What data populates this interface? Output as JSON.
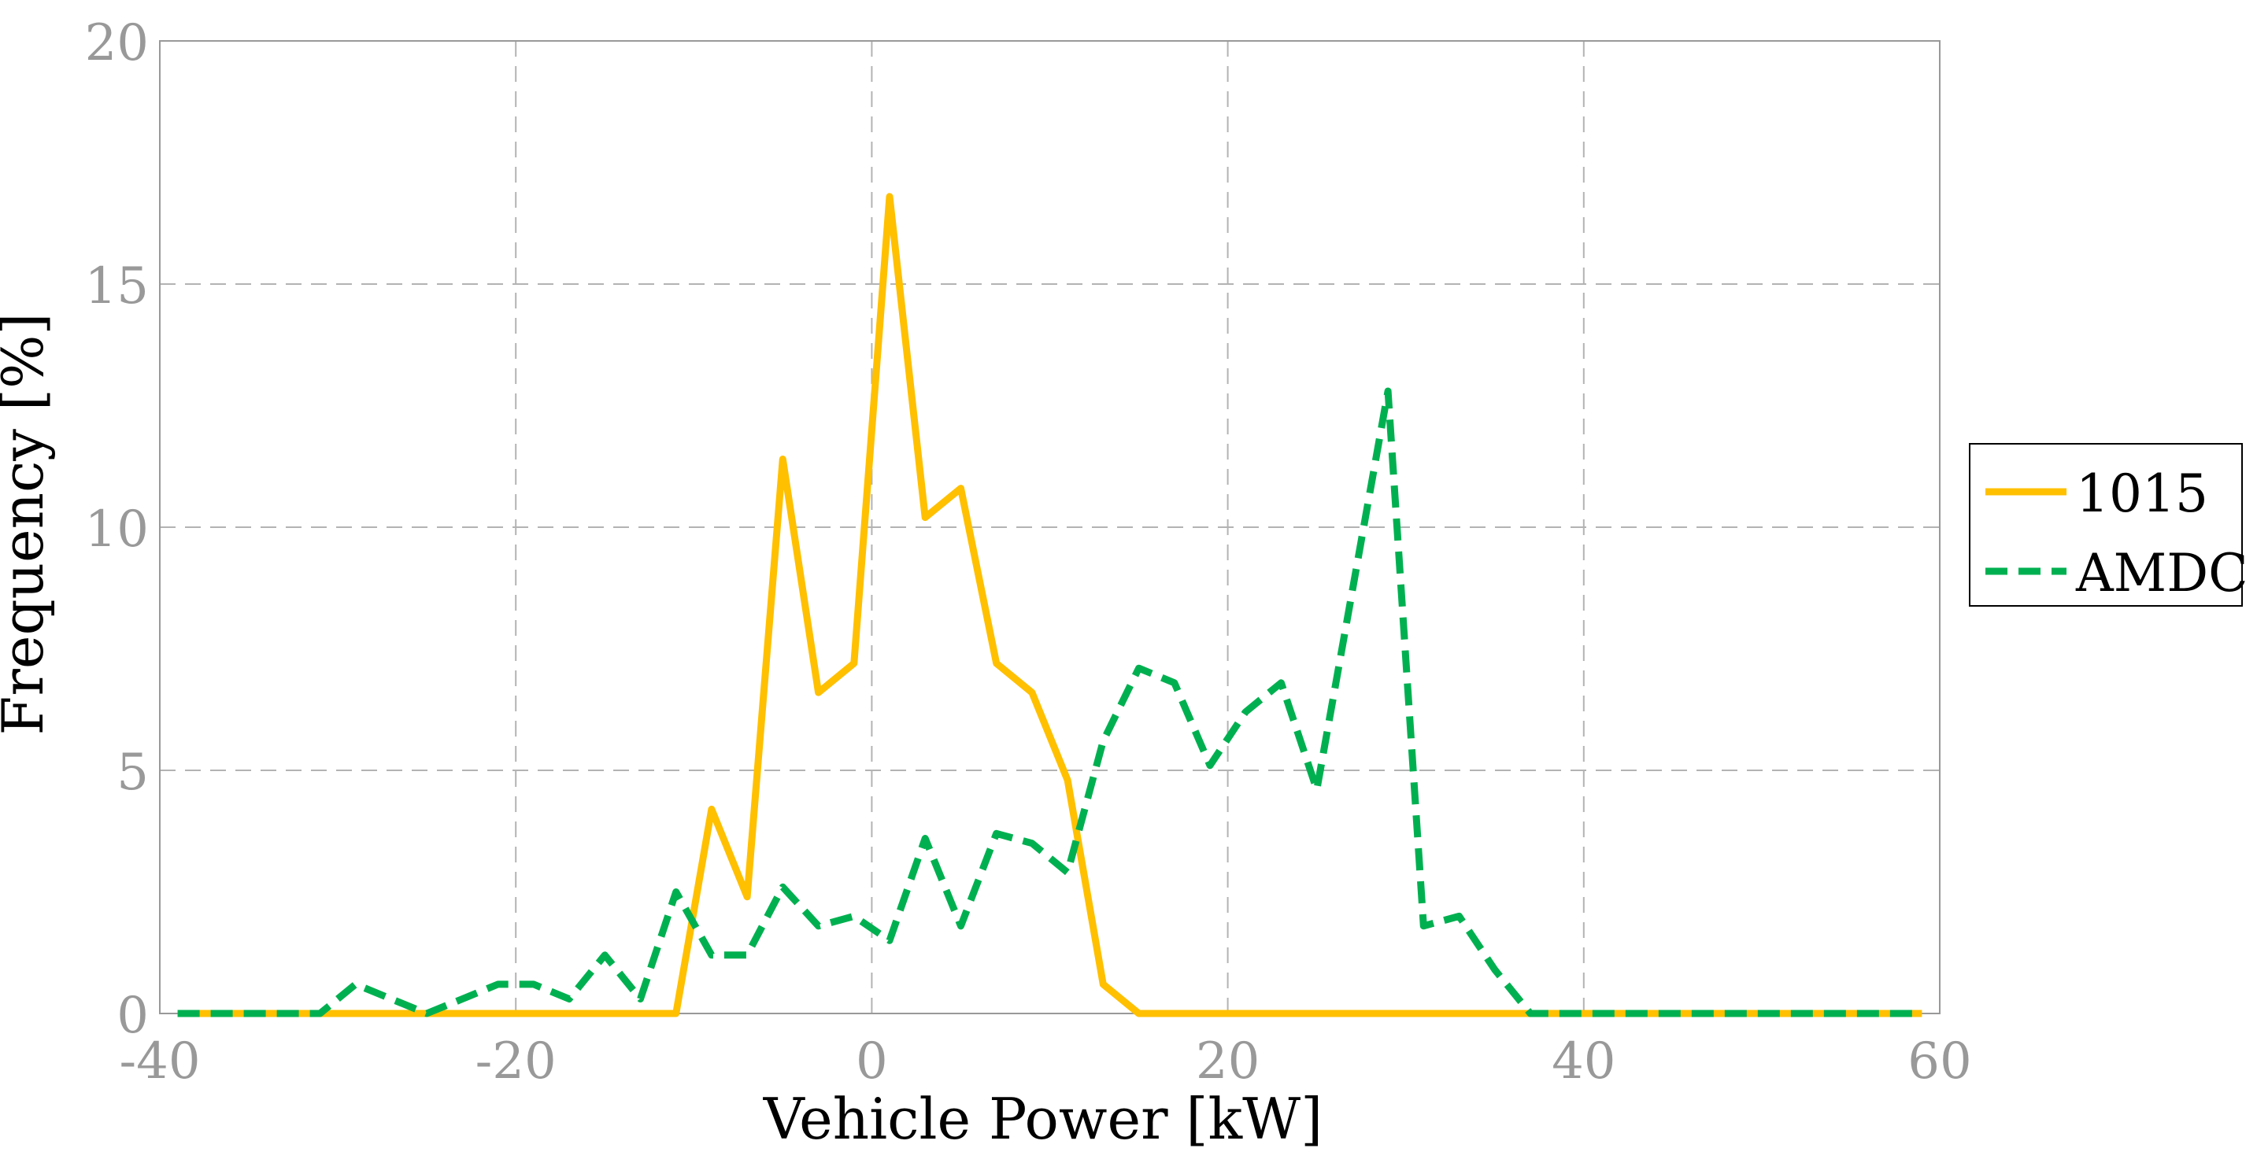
{
  "chart_data": {
    "type": "line",
    "title": "",
    "xlabel": "Vehicle Power [kW]",
    "ylabel": "Frequency [%]",
    "xlim": [
      -40,
      60
    ],
    "ylim": [
      0,
      20
    ],
    "xticks": [
      -40,
      -20,
      0,
      20,
      40,
      60
    ],
    "yticks": [
      0,
      5,
      10,
      15,
      20
    ],
    "grid": true,
    "legend_position": "right",
    "series": [
      {
        "name": "1015",
        "color": "#FFC000",
        "line_style": "solid",
        "x": [
          -39,
          -37,
          -35,
          -33,
          -31,
          -29,
          -27,
          -25,
          -23,
          -21,
          -19,
          -17,
          -15,
          -13,
          -11,
          -9,
          -7,
          -5,
          -3,
          -1,
          1,
          3,
          5,
          7,
          9,
          11,
          13,
          15,
          17,
          19,
          21,
          23,
          25,
          27,
          29,
          31,
          33,
          35,
          37,
          39,
          41,
          43,
          45,
          47,
          49,
          51,
          53,
          55,
          57,
          59
        ],
        "values": [
          0,
          0,
          0,
          0,
          0,
          0,
          0,
          0,
          0,
          0,
          0,
          0,
          0,
          0,
          0,
          4.2,
          2.4,
          11.4,
          6.6,
          7.2,
          16.8,
          10.2,
          10.8,
          7.2,
          6.6,
          4.8,
          0.6,
          0,
          0,
          0,
          0,
          0,
          0,
          0,
          0,
          0,
          0,
          0,
          0,
          0,
          0,
          0,
          0,
          0,
          0,
          0,
          0,
          0,
          0,
          0
        ]
      },
      {
        "name": "AMDC",
        "color": "#00B050",
        "line_style": "dashed",
        "x": [
          -39,
          -37,
          -35,
          -33,
          -31,
          -29,
          -27,
          -25,
          -23,
          -21,
          -19,
          -17,
          -15,
          -13,
          -11,
          -9,
          -7,
          -5,
          -3,
          -1,
          1,
          3,
          5,
          7,
          9,
          11,
          13,
          15,
          17,
          19,
          21,
          23,
          25,
          27,
          29,
          31,
          33,
          35,
          37,
          39,
          41,
          43,
          45,
          47,
          49,
          51,
          53,
          55,
          57,
          59
        ],
        "values": [
          0,
          0,
          0,
          0,
          0,
          0.6,
          0.3,
          0,
          0.3,
          0.6,
          0.6,
          0.3,
          1.2,
          0.3,
          2.5,
          1.2,
          1.2,
          2.6,
          1.8,
          2.0,
          1.5,
          3.6,
          1.8,
          3.7,
          3.5,
          2.9,
          5.6,
          7.1,
          6.8,
          5.1,
          6.2,
          6.8,
          4.6,
          8.7,
          12.8,
          1.8,
          2.0,
          0.9,
          0,
          0,
          0,
          0,
          0,
          0,
          0,
          0,
          0,
          0,
          0,
          0
        ]
      }
    ]
  }
}
